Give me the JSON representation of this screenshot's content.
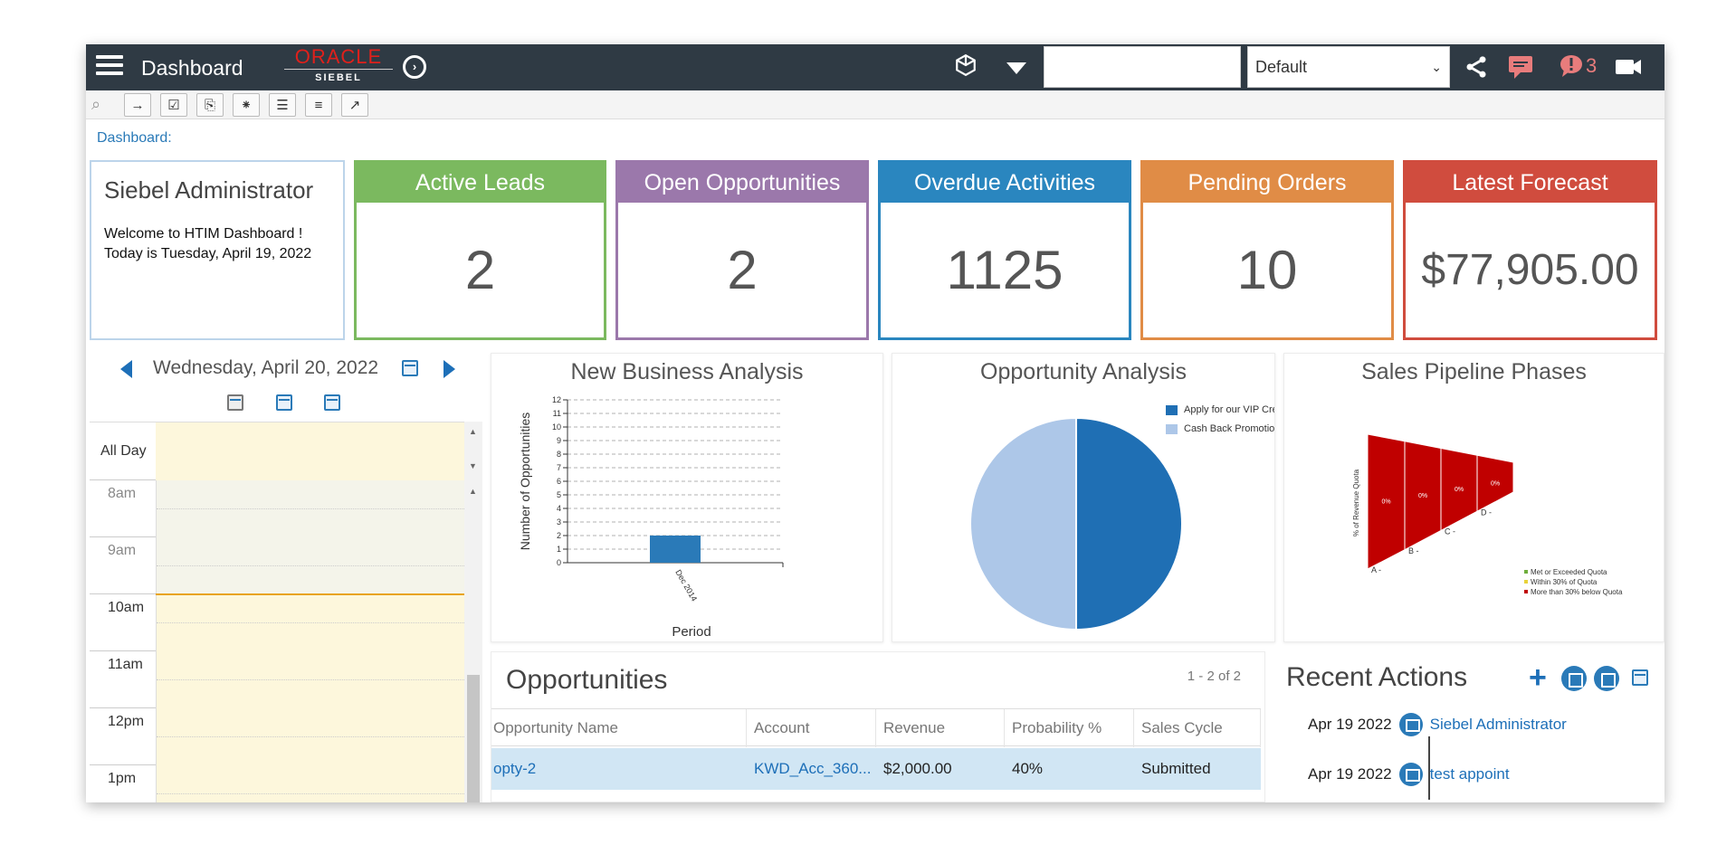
{
  "topbar": {
    "title": "Dashboard",
    "logo_top": "ORACLE",
    "logo_bottom": "SIEBEL",
    "search_value": "",
    "selector_value": "Default",
    "notification_count": "3",
    "accent": "#e0201b",
    "background": "#2f3a44"
  },
  "breadcrumb": "Dashboard:",
  "admin_card": {
    "title": "Siebel Administrator",
    "welcome": "Welcome to HTIM Dashboard ! Today is Tuesday, April 19, 2022"
  },
  "kpis": [
    {
      "label": "Active Leads",
      "value": "2",
      "color": "#7bb95f"
    },
    {
      "label": "Open Opportunities",
      "value": "2",
      "color": "#9b78ab"
    },
    {
      "label": "Overdue Activities",
      "value": "1125",
      "color": "#2a86bf"
    },
    {
      "label": "Pending Orders",
      "value": "10",
      "color": "#e08c46"
    },
    {
      "label": "Latest Forecast",
      "value": "$77,905.00",
      "color": "#d04c3e"
    }
  ],
  "calendar": {
    "date": "Wednesday, April 20, 2022",
    "all_day_label": "All Day",
    "hours": [
      "8am",
      "9am",
      "10am",
      "11am",
      "12pm",
      "1pm"
    ]
  },
  "new_business": {
    "title": "New Business Analysis",
    "chart_data": {
      "type": "bar",
      "title": "New Business Analysis",
      "categories": [
        "Dec 2014"
      ],
      "values": [
        2
      ],
      "xlabel": "Period",
      "ylabel": "Number of Opportunities",
      "ylim": [
        0,
        12
      ],
      "yticks": [
        0,
        1,
        2,
        3,
        4,
        5,
        6,
        7,
        8,
        9,
        10,
        11,
        12
      ],
      "grid": true,
      "color": "#2a7ab8"
    }
  },
  "opportunity_analysis": {
    "title": "Opportunity Analysis",
    "chart_data": {
      "type": "pie",
      "title": "Opportunity Analysis",
      "series": [
        {
          "name": "Apply for our VIP Crec",
          "value": 50,
          "color": "#1f6fb4"
        },
        {
          "name": "Cash Back Promotion",
          "value": 50,
          "color": "#adc7e8"
        }
      ],
      "legend": "top-right"
    }
  },
  "sales_pipeline": {
    "title": "Sales Pipeline Phases",
    "ylabel": "% of Revenue Quota",
    "chart_data": {
      "type": "funnel",
      "title": "Sales Pipeline Phases",
      "categories": [
        "A -",
        "B -",
        "C -",
        "D -"
      ],
      "segment_labels": [
        "0%",
        "0%",
        "0%",
        "0%"
      ],
      "ylabel": "% of Revenue Quota",
      "legend": [
        {
          "name": "Met or Exceeded Quota",
          "color": "#6fae3c"
        },
        {
          "name": "Within 30% of Quota",
          "color": "#e8d23a"
        },
        {
          "name": "More than 30% below Quota",
          "color": "#c00000"
        }
      ],
      "color": "#c00000"
    }
  },
  "opportunities": {
    "title": "Opportunities",
    "pagination": "1 - 2 of 2",
    "columns": [
      "Opportunity Name",
      "Account",
      "Revenue",
      "Probability %",
      "Sales Cycle"
    ],
    "rows": [
      {
        "name": "opty-2",
        "account": "KWD_Acc_360...",
        "revenue": "$2,000.00",
        "probability": "40%",
        "cycle": "Submitted"
      }
    ]
  },
  "recent_actions": {
    "title": "Recent Actions",
    "items": [
      {
        "date": "Apr 19 2022",
        "label": "Siebel Administrator"
      },
      {
        "date": "Apr 19 2022",
        "label": "test appoint"
      }
    ]
  }
}
